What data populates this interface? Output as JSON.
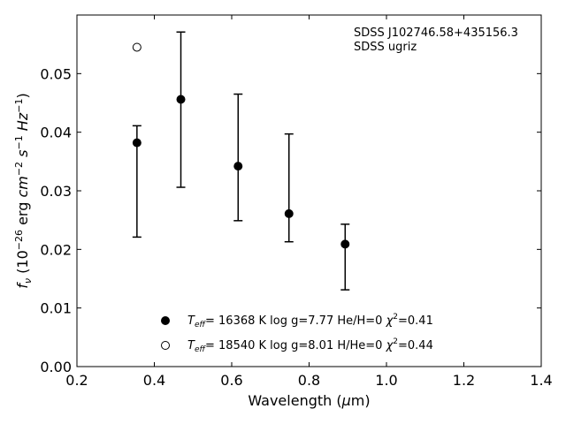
{
  "chart_data": {
    "type": "scatter",
    "annotation_lines": [
      "SDSS J102746.58+435156.3",
      "SDSS ugriz"
    ],
    "xlabel": "Wavelength (μm)",
    "ylabel": "f_ν (10^−26 erg cm^−2 s^−1 Hz^−1)",
    "xlim": [
      0.2,
      1.4
    ],
    "ylim": [
      0.0,
      0.06
    ],
    "xticks": [
      "0.2",
      "0.4",
      "0.6",
      "0.8",
      "1.0",
      "1.2",
      "1.4"
    ],
    "yticks": [
      "0.00",
      "0.01",
      "0.02",
      "0.03",
      "0.04",
      "0.05"
    ],
    "grid": false,
    "legend_position": "bottom-center",
    "observed": {
      "x": [
        0.3551,
        0.4686,
        0.6166,
        0.748,
        0.8932
      ],
      "y": [
        0.0382,
        0.0456,
        0.0342,
        0.0261,
        0.0209
      ],
      "y_low": [
        0.0221,
        0.0306,
        0.0249,
        0.0213,
        0.0131
      ],
      "y_high": [
        0.0411,
        0.0571,
        0.0465,
        0.0397,
        0.0243
      ]
    },
    "series": [
      {
        "marker": "filled-circle",
        "label_parts": [
          "= 16368 K  log g=7.77  He/H=0  ",
          "=0.41"
        ],
        "x": [
          0.3551,
          0.4686,
          0.6166,
          0.748,
          0.8932
        ],
        "y": [
          0.0382,
          0.0456,
          0.0342,
          0.0261,
          0.0209
        ]
      },
      {
        "marker": "open-circle",
        "label_parts": [
          "= 18540 K  log g=8.01  H/He=0  ",
          "=0.44"
        ],
        "x": [
          0.3551
        ],
        "y": [
          0.0545
        ]
      }
    ]
  }
}
